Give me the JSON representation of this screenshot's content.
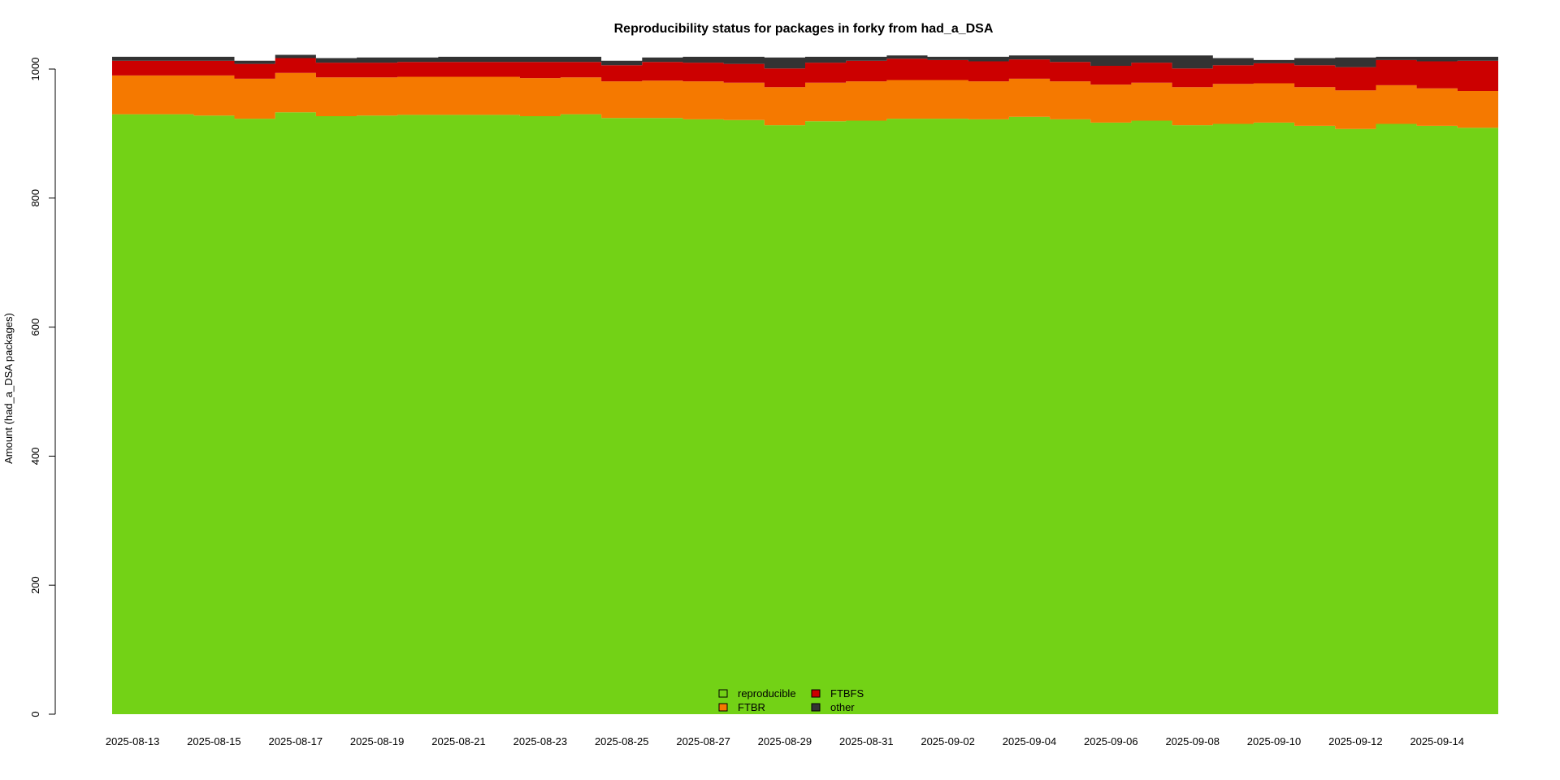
{
  "chart_data": {
    "type": "area",
    "stacked": true,
    "title": "Reproducibility status for packages in forky from had_a_DSA",
    "xlabel": "",
    "ylabel": "Amount (had_a_DSA packages)",
    "ylim": [
      0,
      1000
    ],
    "yticks": [
      0,
      200,
      400,
      600,
      800,
      1000
    ],
    "grid": false,
    "legend_position": "bottom-center",
    "x_tick_labels": [
      "2025-08-13",
      "2025-08-15",
      "2025-08-17",
      "2025-08-19",
      "2025-08-21",
      "2025-08-23",
      "2025-08-25",
      "2025-08-27",
      "2025-08-29",
      "2025-08-31",
      "2025-09-02",
      "2025-09-04",
      "2025-09-06",
      "2025-09-08",
      "2025-09-10",
      "2025-09-12",
      "2025-09-14"
    ],
    "x": [
      "2025-08-13",
      "2025-08-14",
      "2025-08-15",
      "2025-08-16",
      "2025-08-17",
      "2025-08-18",
      "2025-08-19",
      "2025-08-20",
      "2025-08-21",
      "2025-08-22",
      "2025-08-23",
      "2025-08-24",
      "2025-08-25",
      "2025-08-26",
      "2025-08-27",
      "2025-08-28",
      "2025-08-29",
      "2025-08-30",
      "2025-08-31",
      "2025-09-01",
      "2025-09-02",
      "2025-09-03",
      "2025-09-04",
      "2025-09-05",
      "2025-09-06",
      "2025-09-07",
      "2025-09-08",
      "2025-09-09",
      "2025-09-10",
      "2025-09-11",
      "2025-09-12",
      "2025-09-13",
      "2025-09-14",
      "2025-09-15"
    ],
    "series": [
      {
        "name": "reproducible",
        "color": "#73d216",
        "values": [
          930,
          930,
          928,
          923,
          933,
          927,
          928,
          929,
          929,
          929,
          927,
          930,
          924,
          924,
          922,
          921,
          913,
          919,
          920,
          923,
          923,
          922,
          926,
          922,
          917,
          920,
          913,
          915,
          917,
          912,
          907,
          915,
          912,
          909
        ]
      },
      {
        "name": "FTBR",
        "color": "#f57900",
        "values": [
          60,
          60,
          62,
          62,
          61,
          60,
          59,
          59,
          59,
          59,
          59,
          57,
          57,
          58,
          59,
          58,
          59,
          60,
          61,
          60,
          60,
          59,
          59,
          59,
          59,
          59,
          59,
          62,
          61,
          60,
          60,
          60,
          58,
          57
        ]
      },
      {
        "name": "FTBFS",
        "color": "#cc0000",
        "values": [
          23,
          23,
          23,
          23,
          23,
          23,
          23,
          23,
          23,
          23,
          25,
          24,
          25,
          29,
          29,
          29,
          29,
          31,
          32,
          33,
          31,
          31,
          30,
          30,
          29,
          31,
          29,
          29,
          31,
          34,
          36,
          39,
          42,
          47
        ]
      },
      {
        "name": "other",
        "color": "#333333",
        "values": [
          6,
          6,
          6,
          5,
          5,
          7,
          8,
          7,
          8,
          8,
          8,
          8,
          7,
          7,
          9,
          11,
          17,
          9,
          6,
          5,
          5,
          7,
          6,
          10,
          16,
          11,
          20,
          11,
          5,
          11,
          15,
          5,
          7,
          6
        ]
      }
    ]
  }
}
